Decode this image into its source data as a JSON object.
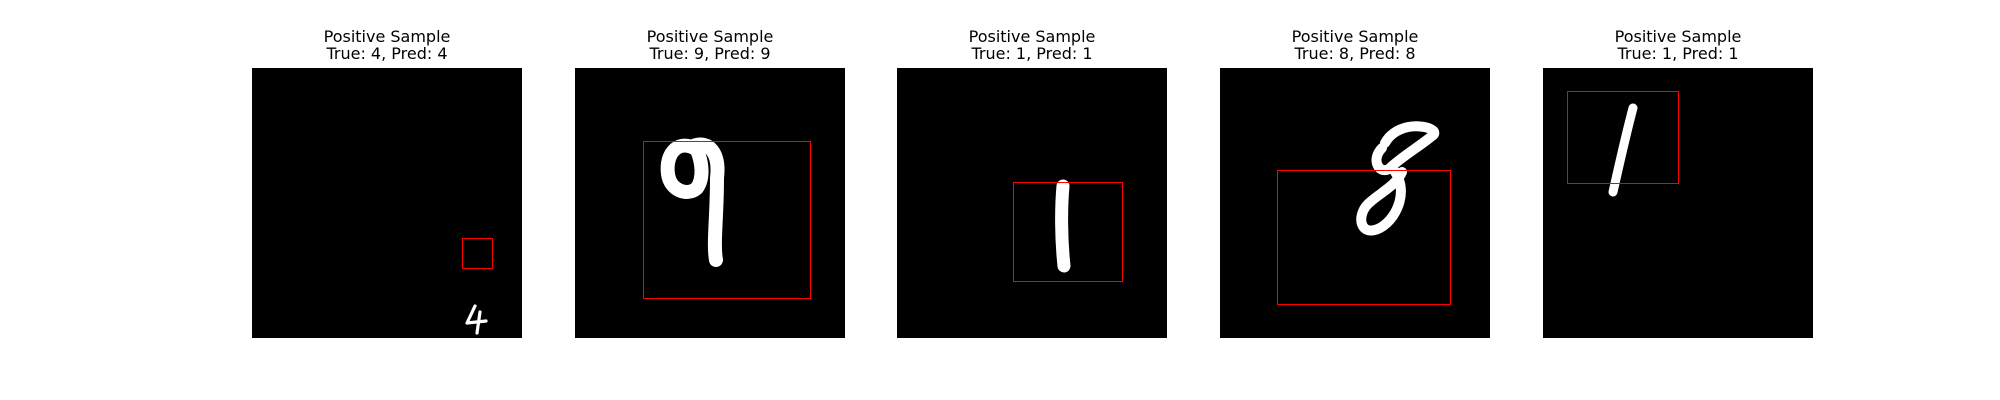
{
  "figure": {
    "samples": [
      {
        "label": "Positive Sample",
        "caption": "True: 4, Pred: 4",
        "digit": "4"
      },
      {
        "label": "Positive Sample",
        "caption": "True: 9, Pred: 9",
        "digit": "9"
      },
      {
        "label": "Positive Sample",
        "caption": "True: 1, Pred: 1",
        "digit": "1"
      },
      {
        "label": "Positive Sample",
        "caption": "True: 8, Pred: 8",
        "digit": "8"
      },
      {
        "label": "Positive Sample",
        "caption": "True: 1, Pred: 1",
        "digit": "1"
      }
    ],
    "box_color": "#ff0000",
    "image_background": "#000000",
    "stroke_color": "#ffffff"
  }
}
